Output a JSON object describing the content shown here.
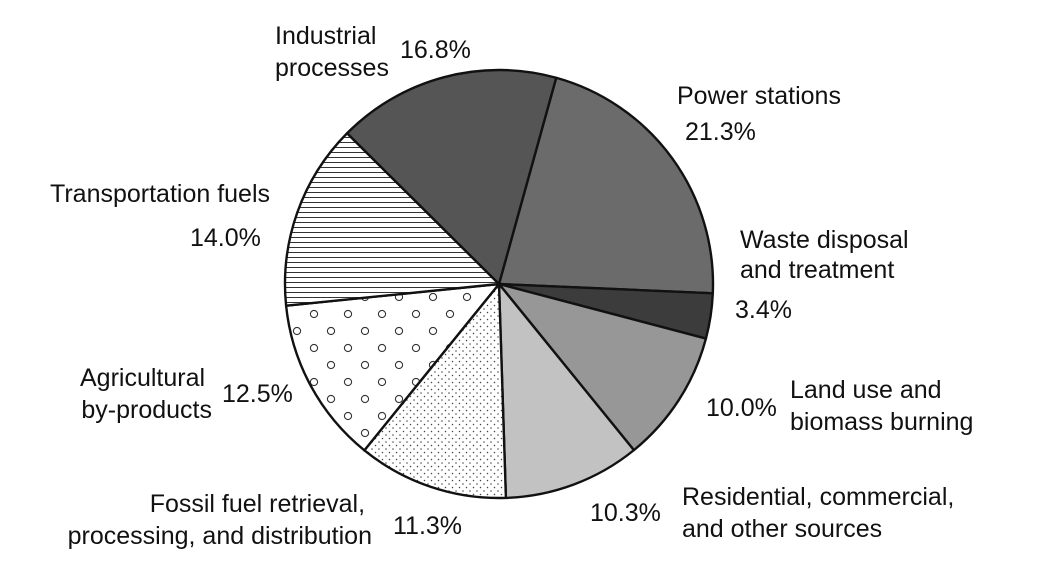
{
  "chart_data": {
    "type": "pie",
    "title": "",
    "slices": [
      {
        "name": "Power stations",
        "label_lines": [
          "Power stations"
        ],
        "value": 21.3,
        "value_label": "21.3%",
        "fill": "#6b6b6b",
        "pattern": "solid"
      },
      {
        "name": "Waste disposal and treatment",
        "label_lines": [
          "Waste disposal",
          "and treatment"
        ],
        "value": 3.4,
        "value_label": "3.4%",
        "fill": "#3c3c3c",
        "pattern": "solid"
      },
      {
        "name": "Land use and biomass burning",
        "label_lines": [
          "Land use and",
          "biomass burning"
        ],
        "value": 10.0,
        "value_label": "10.0%",
        "fill": "#979797",
        "pattern": "solid"
      },
      {
        "name": "Residential, commercial, and other sources",
        "label_lines": [
          "Residential, commercial,",
          "and other sources"
        ],
        "value": 10.3,
        "value_label": "10.3%",
        "fill": "#c2c2c2",
        "pattern": "solid"
      },
      {
        "name": "Fossil fuel retrieval, processing, and distribution",
        "label_lines": [
          "Fossil fuel retrieval,",
          "processing, and distribution"
        ],
        "value": 11.3,
        "value_label": "11.3%",
        "fill": "#ffffff",
        "pattern": "diagonal-dots"
      },
      {
        "name": "Agricultural by-products",
        "label_lines": [
          "Agricultural",
          "by-products"
        ],
        "value": 12.5,
        "value_label": "12.5%",
        "fill": "#ffffff",
        "pattern": "circles"
      },
      {
        "name": "Transportation fuels",
        "label_lines": [
          "Transportation fuels"
        ],
        "value": 14.0,
        "value_label": "14.0%",
        "fill": "#ffffff",
        "pattern": "horizontal-lines"
      },
      {
        "name": "Industrial processes",
        "label_lines": [
          "Industrial",
          "processes"
        ],
        "value": 16.8,
        "value_label": "16.8%",
        "fill": "#555555",
        "pattern": "solid"
      }
    ]
  }
}
